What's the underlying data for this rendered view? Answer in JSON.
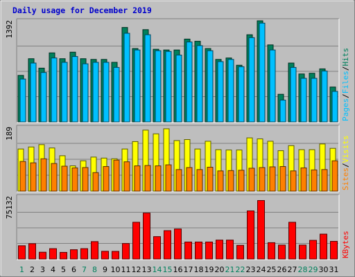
{
  "chart_data": {
    "type": "bar",
    "title": "Daily usage for December 2019",
    "colors": {
      "title": "#0000cc",
      "background": "#c0c0c0",
      "plot_bg": "#bebebe",
      "hits": "#00805c",
      "files": "#00c0ff",
      "sites": "#ff8000",
      "visits": "#ffff00",
      "kbytes": "#ff0000",
      "gridline": "#808080",
      "weekend_label": "#00805c",
      "weekday_label": "#000000"
    },
    "days": [
      "1",
      "2",
      "3",
      "4",
      "5",
      "6",
      "7",
      "8",
      "9",
      "10",
      "11",
      "12",
      "13",
      "14",
      "15",
      "16",
      "17",
      "18",
      "19",
      "20",
      "21",
      "22",
      "23",
      "24",
      "25",
      "26",
      "27",
      "28",
      "29",
      "30",
      "31"
    ],
    "weekend_days": [
      "1",
      "7",
      "8",
      "14",
      "15",
      "21",
      "22",
      "28",
      "29"
    ],
    "panels": [
      {
        "name": "hits-files",
        "y_max_label": "1392",
        "ylim": [
          0,
          1392
        ],
        "legend": [
          {
            "label": "Hits",
            "color": "#00805c"
          },
          {
            "label": "/",
            "color": "#000000"
          },
          {
            "label": "Files",
            "color": "#00c0ff"
          },
          {
            "label": "/",
            "color": "#000000"
          },
          {
            "label": "Pages",
            "color": "#00c0ff"
          }
        ],
        "series": [
          {
            "name": "Hits",
            "values": [
              640,
              870,
              740,
              950,
              870,
              960,
              870,
              860,
              860,
              820,
              1300,
              1010,
              1270,
              1000,
              990,
              990,
              1140,
              1110,
              1010,
              860,
              880,
              780,
              1200,
              1392,
              1060,
              380,
              810,
              660,
              670,
              730,
              480
            ]
          },
          {
            "name": "Files",
            "values": [
              590,
              810,
              680,
              880,
              820,
              900,
              800,
              820,
              820,
              750,
              1220,
              990,
              1200,
              980,
              970,
              920,
              1100,
              1050,
              980,
              830,
              860,
              760,
              1160,
              1360,
              990,
              300,
              750,
              600,
              600,
              700,
              420
            ]
          }
        ]
      },
      {
        "name": "visits-sites",
        "y_max_label": "189",
        "ylim": [
          0,
          189
        ],
        "legend": [
          {
            "label": "Visits",
            "color": "#ffff00"
          },
          {
            "label": "/",
            "color": "#000000"
          },
          {
            "label": "Sites",
            "color": "#ff8000"
          }
        ],
        "series": [
          {
            "name": "Visits",
            "values": [
              125,
              131,
              138,
              128,
              105,
              75,
              90,
              101,
              98,
              96,
              125,
              147,
              181,
              170,
              185,
              150,
              153,
              125,
              148,
              123,
              122,
              122,
              158,
              155,
              148,
              120,
              135,
              123,
              123,
              140,
              127
            ]
          },
          {
            "name": "Sites",
            "values": [
              88,
              84,
              96,
              82,
              74,
              69,
              70,
              55,
              73,
              92,
              87,
              75,
              76,
              75,
              78,
              64,
              70,
              64,
              71,
              60,
              61,
              62,
              68,
              70,
              72,
              73,
              60,
              69,
              63,
              64,
              90
            ]
          }
        ]
      },
      {
        "name": "kbytes",
        "y_max_label": "75132",
        "ylim": [
          0,
          75132
        ],
        "legend": [
          {
            "label": "KBytes",
            "color": "#ff0000"
          }
        ],
        "series": [
          {
            "name": "KBytes",
            "values": [
              16000,
              18500,
              8200,
              12500,
              8000,
              11200,
              12500,
              21000,
              9300,
              9200,
              18700,
              44300,
              55400,
              27000,
              34200,
              36200,
              20500,
              20500,
              20500,
              22800,
              22800,
              16500,
              58000,
              70500,
              19700,
              16800,
              44300,
              16800,
              22500,
              30000,
              21300
            ]
          }
        ]
      }
    ],
    "day_label_color_rule": "weekend days shown in green"
  }
}
